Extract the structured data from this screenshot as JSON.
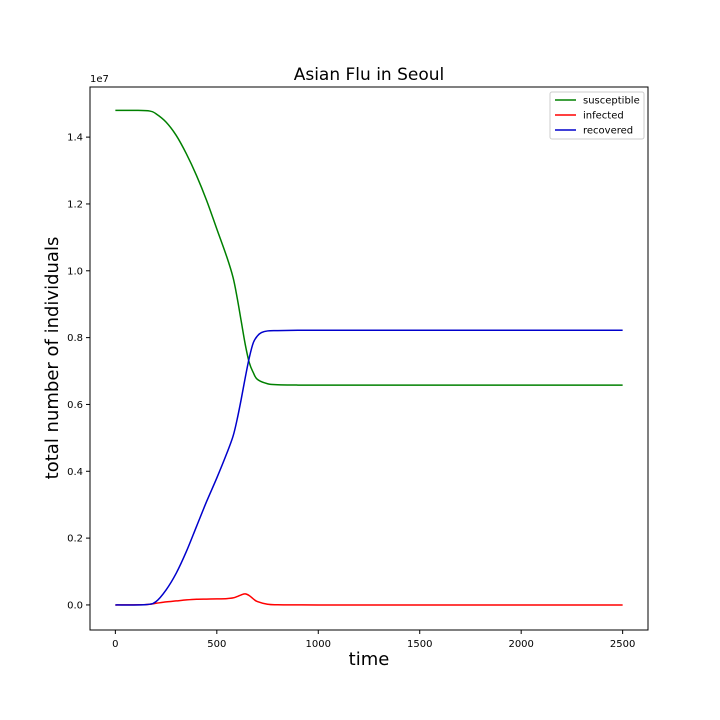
{
  "chart_data": {
    "type": "line",
    "title": "Asian Flu in Seoul",
    "xlabel": "time",
    "ylabel": "total number of individuals",
    "y_offset_label": "1e7",
    "xlim": [
      -125,
      2625
    ],
    "ylim": [
      -750000,
      15500000
    ],
    "x_ticks": [
      0,
      500,
      1000,
      1500,
      2000,
      2500
    ],
    "x_tick_labels": [
      "0",
      "500",
      "1000",
      "1500",
      "2000",
      "2500"
    ],
    "y_ticks": [
      0,
      2000000,
      4000000,
      6000000,
      8000000,
      10000000,
      12000000,
      14000000
    ],
    "y_tick_labels": [
      "0.0",
      "0.2",
      "0.4",
      "0.6",
      "0.8",
      "1.0",
      "1.2",
      "1.4"
    ],
    "grid": false,
    "legend_position": "top-right",
    "series": [
      {
        "name": "susceptible",
        "color": "#008000",
        "x": [
          0,
          100,
          170,
          200,
          250,
          300,
          350,
          400,
          450,
          500,
          550,
          580,
          600,
          620,
          640,
          660,
          680,
          700,
          750,
          800,
          900,
          1000,
          1500,
          2000,
          2500
        ],
        "y": [
          14800000,
          14800000,
          14780000,
          14700000,
          14450000,
          14050000,
          13500000,
          12850000,
          12100000,
          11250000,
          10400000,
          9800000,
          9200000,
          8500000,
          7800000,
          7250000,
          6950000,
          6750000,
          6620000,
          6590000,
          6580000,
          6580000,
          6580000,
          6580000,
          6580000
        ]
      },
      {
        "name": "infected",
        "color": "#ff0000",
        "x": [
          0,
          150,
          200,
          250,
          300,
          350,
          400,
          450,
          500,
          550,
          580,
          600,
          620,
          640,
          660,
          680,
          700,
          750,
          800,
          900,
          1000,
          1500,
          2000,
          2500
        ],
        "y": [
          0,
          10000,
          50000,
          90000,
          120000,
          150000,
          170000,
          175000,
          180000,
          190000,
          210000,
          250000,
          300000,
          330000,
          280000,
          180000,
          100000,
          20000,
          5000,
          1000,
          0,
          0,
          0,
          0
        ]
      },
      {
        "name": "recovered",
        "color": "#0000cc",
        "x": [
          0,
          150,
          200,
          250,
          300,
          350,
          400,
          450,
          500,
          550,
          580,
          600,
          620,
          640,
          660,
          680,
          700,
          720,
          750,
          800,
          900,
          1000,
          1500,
          2000,
          2500
        ],
        "y": [
          0,
          10000,
          100000,
          450000,
          950000,
          1600000,
          2350000,
          3100000,
          3800000,
          4550000,
          5050000,
          5550000,
          6150000,
          6800000,
          7400000,
          7850000,
          8050000,
          8150000,
          8200000,
          8210000,
          8220000,
          8220000,
          8220000,
          8220000,
          8220000
        ]
      }
    ]
  }
}
